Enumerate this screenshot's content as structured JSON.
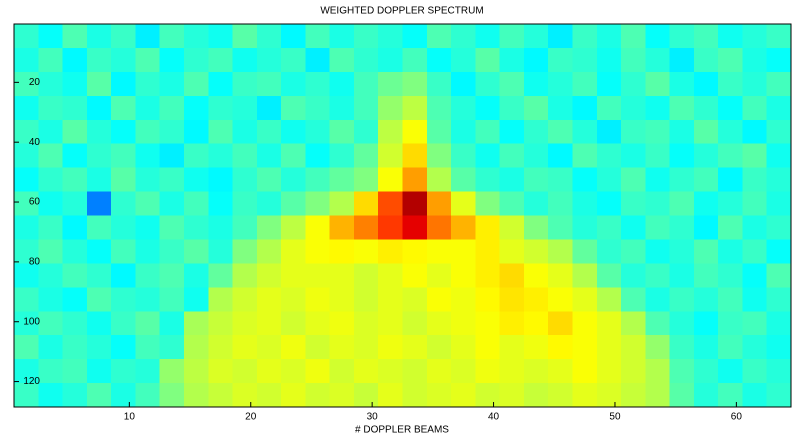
{
  "chart_data": {
    "type": "heatmap",
    "title": "WEIGHTED DOPPLER SPECTRUM",
    "x_label": "# DOPPLER BEAMS",
    "xlim": [
      0.5,
      64.5
    ],
    "ylim": [
      0.5,
      128.5
    ],
    "y_reversed": true,
    "xticks": [
      10,
      20,
      30,
      40,
      50,
      60
    ],
    "yticks": [
      20,
      40,
      60,
      80,
      100,
      120
    ],
    "colormap": "jet",
    "clim": [
      0,
      1
    ],
    "z": [
      [
        0.42,
        0.38,
        0.45,
        0.4,
        0.43,
        0.36,
        0.44,
        0.41,
        0.39,
        0.46,
        0.42,
        0.37,
        0.44,
        0.4,
        0.43,
        0.41,
        0.38,
        0.45,
        0.42,
        0.39,
        0.44,
        0.41,
        0.36,
        0.43,
        0.4,
        0.45,
        0.38,
        0.42,
        0.44,
        0.39,
        0.41,
        0.43
      ],
      [
        0.4,
        0.44,
        0.37,
        0.43,
        0.41,
        0.45,
        0.38,
        0.42,
        0.44,
        0.39,
        0.41,
        0.43,
        0.36,
        0.45,
        0.42,
        0.4,
        0.44,
        0.38,
        0.41,
        0.46,
        0.4,
        0.37,
        0.43,
        0.42,
        0.39,
        0.44,
        0.41,
        0.36,
        0.43,
        0.45,
        0.4,
        0.38
      ],
      [
        0.44,
        0.41,
        0.39,
        0.46,
        0.37,
        0.42,
        0.4,
        0.45,
        0.38,
        0.43,
        0.44,
        0.4,
        0.42,
        0.39,
        0.44,
        0.48,
        0.5,
        0.43,
        0.37,
        0.42,
        0.45,
        0.39,
        0.41,
        0.44,
        0.38,
        0.42,
        0.46,
        0.4,
        0.37,
        0.43,
        0.41,
        0.44
      ],
      [
        0.39,
        0.43,
        0.42,
        0.37,
        0.45,
        0.4,
        0.44,
        0.38,
        0.42,
        0.41,
        0.36,
        0.45,
        0.43,
        0.4,
        0.44,
        0.52,
        0.56,
        0.45,
        0.41,
        0.38,
        0.43,
        0.46,
        0.4,
        0.37,
        0.44,
        0.41,
        0.39,
        0.45,
        0.42,
        0.38,
        0.44,
        0.4
      ],
      [
        0.43,
        0.4,
        0.46,
        0.41,
        0.38,
        0.44,
        0.42,
        0.37,
        0.45,
        0.4,
        0.43,
        0.39,
        0.41,
        0.46,
        0.42,
        0.56,
        0.62,
        0.46,
        0.4,
        0.44,
        0.38,
        0.42,
        0.45,
        0.41,
        0.36,
        0.43,
        0.44,
        0.4,
        0.46,
        0.41,
        0.37,
        0.42
      ],
      [
        0.41,
        0.45,
        0.38,
        0.42,
        0.44,
        0.39,
        0.36,
        0.43,
        0.41,
        0.44,
        0.4,
        0.45,
        0.38,
        0.42,
        0.47,
        0.58,
        0.66,
        0.5,
        0.43,
        0.39,
        0.44,
        0.41,
        0.37,
        0.45,
        0.42,
        0.4,
        0.43,
        0.38,
        0.41,
        0.44,
        0.46,
        0.39
      ],
      [
        0.38,
        0.42,
        0.44,
        0.4,
        0.46,
        0.41,
        0.43,
        0.39,
        0.37,
        0.42,
        0.45,
        0.41,
        0.44,
        0.47,
        0.5,
        0.62,
        0.72,
        0.55,
        0.46,
        0.42,
        0.4,
        0.44,
        0.43,
        0.38,
        0.41,
        0.45,
        0.39,
        0.42,
        0.44,
        0.37,
        0.43,
        0.41
      ],
      [
        0.44,
        0.39,
        0.41,
        0.25,
        0.42,
        0.45,
        0.4,
        0.44,
        0.38,
        0.43,
        0.41,
        0.46,
        0.5,
        0.55,
        0.66,
        0.8,
        0.95,
        0.72,
        0.6,
        0.5,
        0.45,
        0.41,
        0.44,
        0.4,
        0.38,
        0.43,
        0.42,
        0.45,
        0.39,
        0.41,
        0.44,
        0.4
      ],
      [
        0.4,
        0.43,
        0.37,
        0.44,
        0.41,
        0.39,
        0.45,
        0.42,
        0.4,
        0.44,
        0.5,
        0.56,
        0.62,
        0.7,
        0.75,
        0.82,
        0.9,
        0.76,
        0.7,
        0.64,
        0.58,
        0.5,
        0.45,
        0.41,
        0.43,
        0.39,
        0.44,
        0.42,
        0.37,
        0.45,
        0.4,
        0.42
      ],
      [
        0.42,
        0.45,
        0.41,
        0.38,
        0.44,
        0.4,
        0.43,
        0.46,
        0.41,
        0.5,
        0.55,
        0.6,
        0.62,
        0.63,
        0.62,
        0.64,
        0.63,
        0.62,
        0.62,
        0.64,
        0.6,
        0.58,
        0.55,
        0.47,
        0.42,
        0.44,
        0.39,
        0.41,
        0.45,
        0.4,
        0.43,
        0.38
      ],
      [
        0.39,
        0.41,
        0.44,
        0.42,
        0.37,
        0.43,
        0.45,
        0.4,
        0.47,
        0.55,
        0.58,
        0.6,
        0.6,
        0.6,
        0.58,
        0.6,
        0.62,
        0.6,
        0.62,
        0.64,
        0.66,
        0.62,
        0.6,
        0.55,
        0.46,
        0.41,
        0.43,
        0.4,
        0.44,
        0.42,
        0.38,
        0.45
      ],
      [
        0.43,
        0.4,
        0.38,
        0.45,
        0.42,
        0.41,
        0.44,
        0.39,
        0.55,
        0.58,
        0.6,
        0.59,
        0.61,
        0.6,
        0.58,
        0.6,
        0.59,
        0.62,
        0.61,
        0.63,
        0.65,
        0.64,
        0.62,
        0.6,
        0.55,
        0.45,
        0.4,
        0.43,
        0.41,
        0.44,
        0.39,
        0.42
      ],
      [
        0.41,
        0.44,
        0.42,
        0.39,
        0.43,
        0.46,
        0.4,
        0.54,
        0.57,
        0.59,
        0.6,
        0.58,
        0.6,
        0.61,
        0.59,
        0.6,
        0.58,
        0.6,
        0.61,
        0.62,
        0.64,
        0.63,
        0.66,
        0.62,
        0.6,
        0.55,
        0.45,
        0.41,
        0.38,
        0.43,
        0.44,
        0.4
      ],
      [
        0.45,
        0.4,
        0.43,
        0.41,
        0.38,
        0.44,
        0.42,
        0.55,
        0.58,
        0.6,
        0.59,
        0.61,
        0.58,
        0.6,
        0.59,
        0.61,
        0.6,
        0.58,
        0.6,
        0.62,
        0.6,
        0.61,
        0.63,
        0.62,
        0.6,
        0.58,
        0.52,
        0.43,
        0.4,
        0.44,
        0.41,
        0.39
      ],
      [
        0.4,
        0.43,
        0.44,
        0.39,
        0.42,
        0.41,
        0.52,
        0.56,
        0.59,
        0.58,
        0.6,
        0.59,
        0.61,
        0.58,
        0.6,
        0.59,
        0.58,
        0.6,
        0.59,
        0.61,
        0.6,
        0.59,
        0.6,
        0.62,
        0.6,
        0.58,
        0.55,
        0.45,
        0.42,
        0.39,
        0.43,
        0.41
      ],
      [
        0.43,
        0.39,
        0.41,
        0.45,
        0.4,
        0.44,
        0.5,
        0.55,
        0.57,
        0.59,
        0.58,
        0.6,
        0.58,
        0.59,
        0.57,
        0.6,
        0.58,
        0.59,
        0.6,
        0.58,
        0.59,
        0.57,
        0.58,
        0.6,
        0.59,
        0.57,
        0.55,
        0.46,
        0.41,
        0.44,
        0.4,
        0.42
      ]
    ]
  }
}
